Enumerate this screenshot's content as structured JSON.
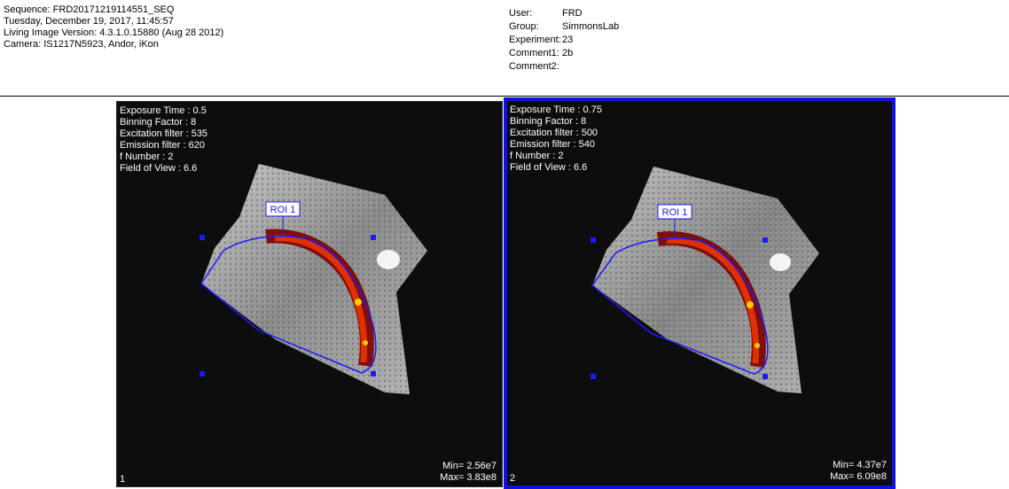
{
  "header_left": [
    "Sequence: FRD20171219114551_SEQ",
    "Tuesday, December 19, 2017, 11:45:57",
    "Living Image Version: 4.3.1.0.15880 (Aug 28 2012)",
    "Camera: IS1217N5923, Andor, iKon"
  ],
  "header_right": [
    {
      "label": "User:",
      "value": "FRD"
    },
    {
      "label": "Group:",
      "value": "SimmonsLab"
    },
    {
      "label": "Experiment:",
      "value": "23"
    },
    {
      "label": "Comment1:",
      "value": "2b"
    },
    {
      "label": "Comment2:",
      "value": ""
    }
  ],
  "panels": [
    {
      "info": [
        "Exposure Time : 0.5",
        "Binning Factor : 8",
        "Excitation filter : 535",
        "Emission filter : 620",
        "f Number : 2",
        "Field of View : 6.6"
      ],
      "roi_label": "ROI 1",
      "min": "Min= 2.56e7",
      "max": "Max= 3.83e8",
      "index": "1",
      "selected": false
    },
    {
      "info": [
        "Exposure Time : 0.75",
        "Binning Factor : 8",
        "Excitation filter : 500",
        "Emission filter : 540",
        "f Number : 2",
        "Field of View : 6.6"
      ],
      "roi_label": "ROI 1",
      "min": "Min= 4.37e7",
      "max": "Max= 6.09e8",
      "index": "2",
      "selected": true
    }
  ],
  "colors": {
    "roi": "#1a1aff",
    "selection_border": "#1010e0",
    "heat_low": "#7a0000",
    "heat_mid": "#e03000",
    "heat_high": "#ffd000"
  }
}
